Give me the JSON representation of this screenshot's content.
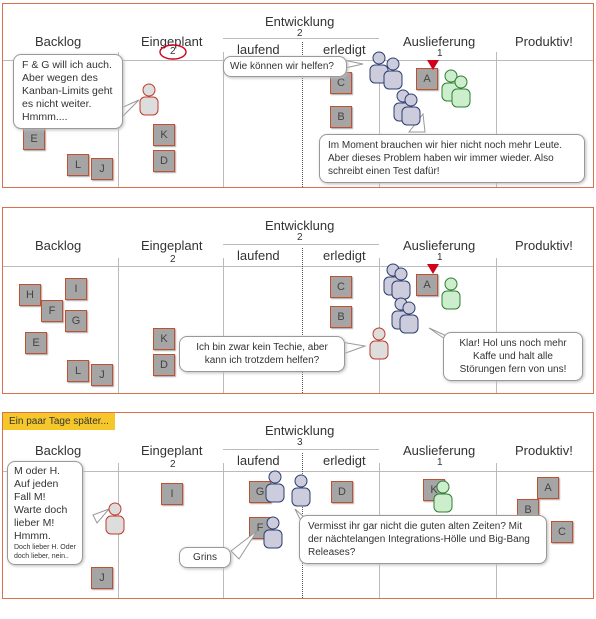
{
  "columns": {
    "backlog": "Backlog",
    "planned": "Eingeplant",
    "dev": "Entwicklung",
    "running": "laufend",
    "done": "erledigt",
    "delivery": "Auslieferung",
    "production": "Produktiv!"
  },
  "panel1": {
    "planned_limit": "2",
    "dev_limit": "2",
    "delivery_limit": "1",
    "cards": [
      "E",
      "K",
      "D",
      "L",
      "J",
      "C",
      "B",
      "A"
    ],
    "bubble_left": "F & G will ich auch. Aber wegen des Kanban-Limits geht es nicht weiter. Hmmm....",
    "bubble_help": "Wie können wir helfen?",
    "bubble_bottom": "Im Moment brauchen wir hier nicht noch mehr Leute. Aber dieses Problem haben wir immer wieder. Also schreibt einen Test dafür!"
  },
  "panel2": {
    "planned_limit": "2",
    "dev_limit": "2",
    "delivery_limit": "1",
    "cards": [
      "H",
      "I",
      "F",
      "G",
      "E",
      "L",
      "J",
      "K",
      "D",
      "C",
      "B",
      "A"
    ],
    "bubble_techie": "Ich bin zwar kein Techie, aber kann ich trotzdem helfen?",
    "bubble_coffee": "Klar! Hol uns noch mehr Kaffe und halt alle Störungen fern von uns!"
  },
  "panel3": {
    "tag": "Ein paar Tage später...",
    "planned_limit": "2",
    "dev_limit": "3",
    "delivery_limit": "1",
    "cards": [
      "I",
      "G",
      "F",
      "D",
      "K",
      "A",
      "B",
      "C",
      "J"
    ],
    "bubble_choice": "M oder H. Auf jeden Fall M! Warte doch lieber M! Hmmm.",
    "bubble_choice_small": "Doch lieber H. Oder doch lieber, nein..",
    "bubble_grins": "Grins",
    "bubble_miss": "Vermisst ihr gar nicht die guten alten Zeiten? Mit der nächtelangen Integrations-Hölle und Big-Bang Releases?"
  },
  "colors": {
    "border": "#d9714f",
    "card": "#a5a5a5",
    "card_border": "#c0502f",
    "tag": "#f6c72a",
    "alert": "#d0021b"
  }
}
